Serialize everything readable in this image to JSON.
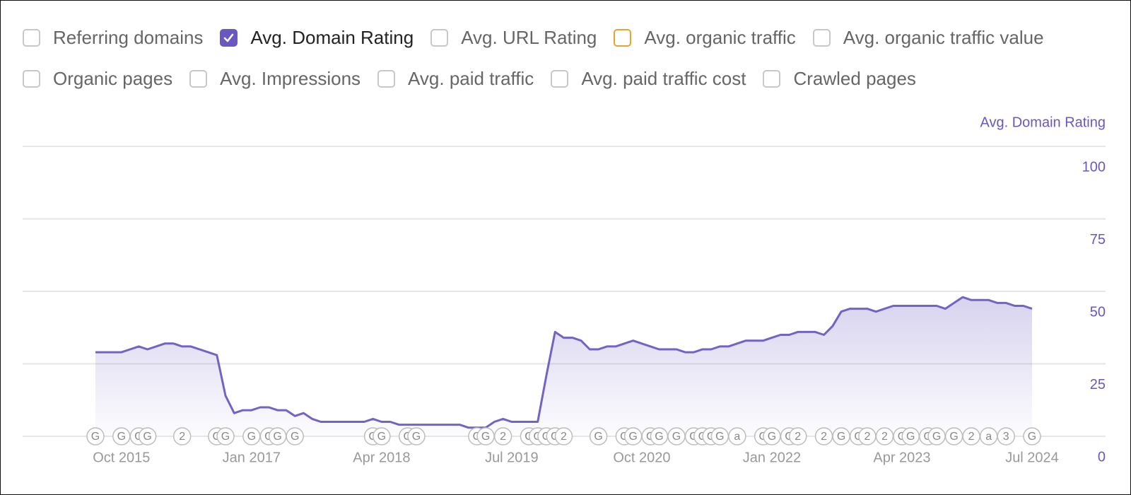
{
  "checkboxes": [
    [
      {
        "label": "Referring domains",
        "checked": false
      },
      {
        "label": "Avg. Domain Rating",
        "checked": true,
        "color": "#6b57c2"
      },
      {
        "label": "Avg. URL Rating",
        "checked": false
      },
      {
        "label": "Avg. organic traffic",
        "checked": false,
        "color": "#f0a030"
      },
      {
        "label": "Avg. organic traffic value",
        "checked": false
      }
    ],
    [
      {
        "label": "Organic pages",
        "checked": false
      },
      {
        "label": "Avg. Impressions",
        "checked": false
      },
      {
        "label": "Avg. paid traffic",
        "checked": false
      },
      {
        "label": "Avg. paid traffic cost",
        "checked": false
      },
      {
        "label": "Crawled pages",
        "checked": false
      }
    ]
  ],
  "chart_data": {
    "type": "area",
    "y_label": "Avg. Domain Rating",
    "x": [
      "2015-07",
      "2015-08",
      "2015-09",
      "2015-10",
      "2015-11",
      "2015-12",
      "2016-01",
      "2016-02",
      "2016-03",
      "2016-04",
      "2016-05",
      "2016-06",
      "2016-07",
      "2016-08",
      "2016-09",
      "2016-10",
      "2016-11",
      "2016-12",
      "2017-01",
      "2017-02",
      "2017-03",
      "2017-04",
      "2017-05",
      "2017-06",
      "2017-07",
      "2017-08",
      "2017-09",
      "2017-10",
      "2017-11",
      "2017-12",
      "2018-01",
      "2018-02",
      "2018-03",
      "2018-04",
      "2018-05",
      "2018-06",
      "2018-07",
      "2018-08",
      "2018-09",
      "2018-10",
      "2018-11",
      "2018-12",
      "2019-01",
      "2019-02",
      "2019-03",
      "2019-04",
      "2019-05",
      "2019-06",
      "2019-07",
      "2019-08",
      "2019-09",
      "2019-10",
      "2019-11",
      "2019-12",
      "2020-01",
      "2020-02",
      "2020-03",
      "2020-04",
      "2020-05",
      "2020-06",
      "2020-07",
      "2020-08",
      "2020-09",
      "2020-10",
      "2020-11",
      "2020-12",
      "2021-01",
      "2021-02",
      "2021-03",
      "2021-04",
      "2021-05",
      "2021-06",
      "2021-07",
      "2021-08",
      "2021-09",
      "2021-10",
      "2021-11",
      "2021-12",
      "2022-01",
      "2022-02",
      "2022-03",
      "2022-04",
      "2022-05",
      "2022-06",
      "2022-07",
      "2022-08",
      "2022-09",
      "2022-10",
      "2022-11",
      "2022-12",
      "2023-01",
      "2023-02",
      "2023-03",
      "2023-04",
      "2023-05",
      "2023-06",
      "2023-07",
      "2023-08",
      "2023-09",
      "2023-10",
      "2023-11",
      "2023-12",
      "2024-01",
      "2024-02",
      "2024-03",
      "2024-04",
      "2024-05",
      "2024-06",
      "2024-07"
    ],
    "series": [
      {
        "name": "Avg. Domain Rating",
        "color": "#7462c4",
        "values": [
          29,
          29,
          29,
          29,
          30,
          31,
          30,
          31,
          32,
          32,
          31,
          31,
          30,
          29,
          28,
          14,
          8,
          9,
          9,
          10,
          10,
          9,
          9,
          7,
          8,
          6,
          5,
          5,
          5,
          5,
          5,
          5,
          6,
          5,
          5,
          4,
          4,
          4,
          4,
          4,
          4,
          4,
          4,
          3,
          3,
          3,
          5,
          6,
          5,
          5,
          5,
          5,
          21,
          36,
          34,
          34,
          33,
          30,
          30,
          31,
          31,
          32,
          33,
          32,
          31,
          30,
          30,
          30,
          29,
          29,
          30,
          30,
          31,
          31,
          32,
          33,
          33,
          33,
          34,
          35,
          35,
          36,
          36,
          36,
          35,
          38,
          43,
          44,
          44,
          44,
          43,
          44,
          45,
          45,
          45,
          45,
          45,
          45,
          44,
          46,
          48,
          47,
          47,
          47,
          46,
          46,
          45,
          45,
          44
        ]
      }
    ],
    "ylim": [
      0,
      100
    ],
    "yticks": [
      0,
      25,
      50,
      75,
      100
    ],
    "xticks": [
      {
        "value": "2015-10",
        "label": "Oct 2015"
      },
      {
        "value": "2017-01",
        "label": "Jan 2017"
      },
      {
        "value": "2018-04",
        "label": "Apr 2018"
      },
      {
        "value": "2019-07",
        "label": "Jul 2019"
      },
      {
        "value": "2020-10",
        "label": "Oct 2020"
      },
      {
        "value": "2022-01",
        "label": "Jan 2022"
      },
      {
        "value": "2023-04",
        "label": "Apr 2023"
      },
      {
        "value": "2024-07",
        "label": "Jul 2024"
      }
    ],
    "grid": true,
    "annotations": [
      {
        "x": "2015-07",
        "label": "G"
      },
      {
        "x": "2015-10",
        "label": "G"
      },
      {
        "x": "2015-12",
        "label": "G"
      },
      {
        "x": "2016-01",
        "label": "G"
      },
      {
        "x": "2016-05",
        "label": "2"
      },
      {
        "x": "2016-09",
        "label": "G"
      },
      {
        "x": "2016-10",
        "label": "G"
      },
      {
        "x": "2017-01",
        "label": "G"
      },
      {
        "x": "2017-03",
        "label": "G"
      },
      {
        "x": "2017-04",
        "label": "G"
      },
      {
        "x": "2017-06",
        "label": "G"
      },
      {
        "x": "2018-03",
        "label": "G"
      },
      {
        "x": "2018-04",
        "label": "G"
      },
      {
        "x": "2018-07",
        "label": "G"
      },
      {
        "x": "2018-08",
        "label": "G"
      },
      {
        "x": "2019-03",
        "label": "G"
      },
      {
        "x": "2019-04",
        "label": "G"
      },
      {
        "x": "2019-06",
        "label": "2"
      },
      {
        "x": "2019-09",
        "label": "G"
      },
      {
        "x": "2019-10",
        "label": "G"
      },
      {
        "x": "2019-11",
        "label": "G"
      },
      {
        "x": "2019-12",
        "label": "G"
      },
      {
        "x": "2020-01",
        "label": "2"
      },
      {
        "x": "2020-05",
        "label": "G"
      },
      {
        "x": "2020-08",
        "label": "G"
      },
      {
        "x": "2020-09",
        "label": "G"
      },
      {
        "x": "2020-11",
        "label": "G"
      },
      {
        "x": "2020-12",
        "label": "G"
      },
      {
        "x": "2021-02",
        "label": "G"
      },
      {
        "x": "2021-04",
        "label": "G"
      },
      {
        "x": "2021-05",
        "label": "G"
      },
      {
        "x": "2021-06",
        "label": "G"
      },
      {
        "x": "2021-07",
        "label": "G"
      },
      {
        "x": "2021-09",
        "label": "a"
      },
      {
        "x": "2021-12",
        "label": "G"
      },
      {
        "x": "2022-01",
        "label": "G"
      },
      {
        "x": "2022-03",
        "label": "G"
      },
      {
        "x": "2022-04",
        "label": "2"
      },
      {
        "x": "2022-07",
        "label": "2"
      },
      {
        "x": "2022-09",
        "label": "G"
      },
      {
        "x": "2022-11",
        "label": "G"
      },
      {
        "x": "2022-12",
        "label": "2"
      },
      {
        "x": "2023-02",
        "label": "2"
      },
      {
        "x": "2023-04",
        "label": "G"
      },
      {
        "x": "2023-05",
        "label": "G"
      },
      {
        "x": "2023-07",
        "label": "G"
      },
      {
        "x": "2023-08",
        "label": "G"
      },
      {
        "x": "2023-10",
        "label": "G"
      },
      {
        "x": "2023-12",
        "label": "2"
      },
      {
        "x": "2024-02",
        "label": "a"
      },
      {
        "x": "2024-04",
        "label": "3"
      },
      {
        "x": "2024-07",
        "label": "G"
      }
    ]
  }
}
